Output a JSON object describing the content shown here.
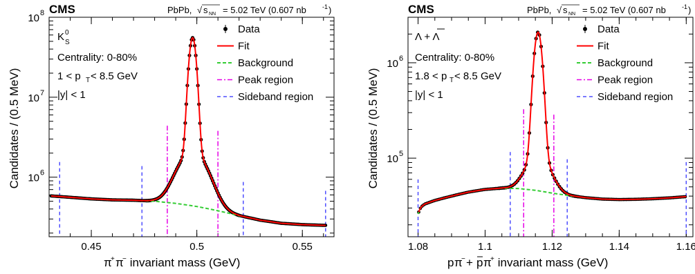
{
  "colors": {
    "data": "#000000",
    "fit": "#ff0000",
    "background": "#33cc33",
    "peak_region": "#e600e6",
    "sideband_region": "#4d4dff"
  },
  "chart_data": [
    {
      "type": "scatter",
      "experiment_label": "CMS",
      "header_text": "PbPb, √s_NN = 5.02 TeV (0.607 nb⁻¹)",
      "header_parts": {
        "left": "PbPb,",
        "sqrt_sub": "NN",
        "right": "= 5.02 TeV (0.607 nb",
        "sup": "-1",
        "close": ")"
      },
      "particle_label": {
        "main": "K",
        "sup": "0",
        "sub": "S"
      },
      "annotations": {
        "centrality": "Centrality: 0-80%",
        "pt_range": {
          "pre": "1 < p",
          "sub": "T",
          "post": " < 8.5 GeV"
        },
        "rapidity": "|y| < 1"
      },
      "xlabel": "π⁺π⁻ invariant mass (GeV)",
      "xlabel_parts": {
        "a": "π",
        "a_sup": "+",
        "b": "π",
        "b_sup": "−",
        "rest": " invariant mass (GeV)"
      },
      "ylabel": "Candidates / (0.5 MeV)",
      "xlim": [
        0.43,
        0.565
      ],
      "ylim": [
        180000,
        100000000
      ],
      "yscale": "log",
      "xticks": [
        0.45,
        0.5,
        0.55
      ],
      "xtick_labels": [
        "0.45",
        "0.5",
        "0.55"
      ],
      "yticks": [
        {
          "value": 1000000,
          "base": "10",
          "exp": "6"
        },
        {
          "value": 10000000,
          "base": "10",
          "exp": "7"
        },
        {
          "value": 100000000,
          "base": "10",
          "exp": "8"
        }
      ],
      "legend": {
        "position": "top-right",
        "entries": [
          "Data",
          "Fit",
          "Background",
          "Peak region",
          "Sideband region"
        ]
      },
      "signal_model": {
        "peak_x": 0.498,
        "peak_y": 55000000,
        "core_width": 0.00145,
        "tail_width": 0.0062,
        "tail_fraction": 0.03
      },
      "background_curve": {
        "x": [
          0.43,
          0.44,
          0.45,
          0.46,
          0.47,
          0.48,
          0.49,
          0.5,
          0.51,
          0.52,
          0.53,
          0.54,
          0.55,
          0.56
        ],
        "y": [
          585000,
          560000,
          535000,
          520000,
          515000,
          500000,
          470000,
          430000,
          380000,
          330000,
          290000,
          265000,
          255000,
          250000
        ]
      },
      "data_points": {
        "x_min": 0.431,
        "x_max": 0.561,
        "step": 0.0005
      },
      "peak_region": [
        0.486,
        0.51
      ],
      "sideband_region": [
        0.435,
        0.474,
        0.522,
        0.561
      ]
    },
    {
      "type": "scatter",
      "experiment_label": "CMS",
      "header_text": "PbPb, √s_NN = 5.02 TeV (0.607 nb⁻¹)",
      "header_parts": {
        "left": "PbPb,",
        "sqrt_sub": "NN",
        "right": "= 5.02 TeV (0.607 nb",
        "sup": "-1",
        "close": ")"
      },
      "particle_label": {
        "text": "Λ + Λ",
        "bar_over_second": true
      },
      "annotations": {
        "centrality": "Centrality: 0-80%",
        "pt_range": {
          "pre": "1.8 < p",
          "sub": "T",
          "post": " < 8.5 GeV"
        },
        "rapidity": "|y| < 1"
      },
      "xlabel": "pπ⁻+ p̄π⁺ invariant mass (GeV)",
      "xlabel_parts": {
        "p": "p",
        "pi1": "π",
        "pi1_sup": "−",
        "plus": "+ ",
        "pbar": "p",
        "pi2": "π",
        "pi2_sup": "+",
        "rest": " invariant mass (GeV)"
      },
      "ylabel": "Candidates / (0.5 MeV)",
      "xlim": [
        1.077,
        1.162
      ],
      "ylim": [
        15000,
        3000000
      ],
      "yscale": "log",
      "xticks": [
        1.08,
        1.1,
        1.12,
        1.14,
        1.16
      ],
      "xtick_labels": [
        "1.08",
        "1.1",
        "1.12",
        "1.14",
        "1.16"
      ],
      "yticks": [
        {
          "value": 100000,
          "base": "10",
          "exp": "5"
        },
        {
          "value": 1000000,
          "base": "10",
          "exp": "6"
        }
      ],
      "legend": {
        "position": "top-right",
        "entries": [
          "Data",
          "Fit",
          "Background",
          "Peak region",
          "Sideband region"
        ]
      },
      "signal_model": {
        "peak_x": 1.1158,
        "peak_y": 2050000,
        "core_width": 0.00105,
        "tail_width": 0.0032,
        "tail_fraction": 0.03
      },
      "background_curve": {
        "x": [
          1.08,
          1.0805,
          1.081,
          1.082,
          1.085,
          1.09,
          1.095,
          1.1,
          1.105,
          1.11,
          1.115,
          1.12,
          1.125,
          1.13,
          1.135,
          1.14,
          1.145,
          1.15,
          1.155,
          1.16
        ],
        "y": [
          26000,
          29000,
          31000,
          33000,
          36000,
          40000,
          44000,
          47000,
          48500,
          48000,
          46000,
          43000,
          40500,
          38500,
          37200,
          36800,
          37000,
          37500,
          38300,
          39500
        ]
      },
      "data_points": {
        "x_min": 1.0802,
        "x_max": 1.16,
        "step": 0.0005
      },
      "peak_region": [
        1.1115,
        1.1205
      ],
      "sideband_region": [
        1.08,
        1.1075,
        1.1245,
        1.16
      ]
    }
  ]
}
